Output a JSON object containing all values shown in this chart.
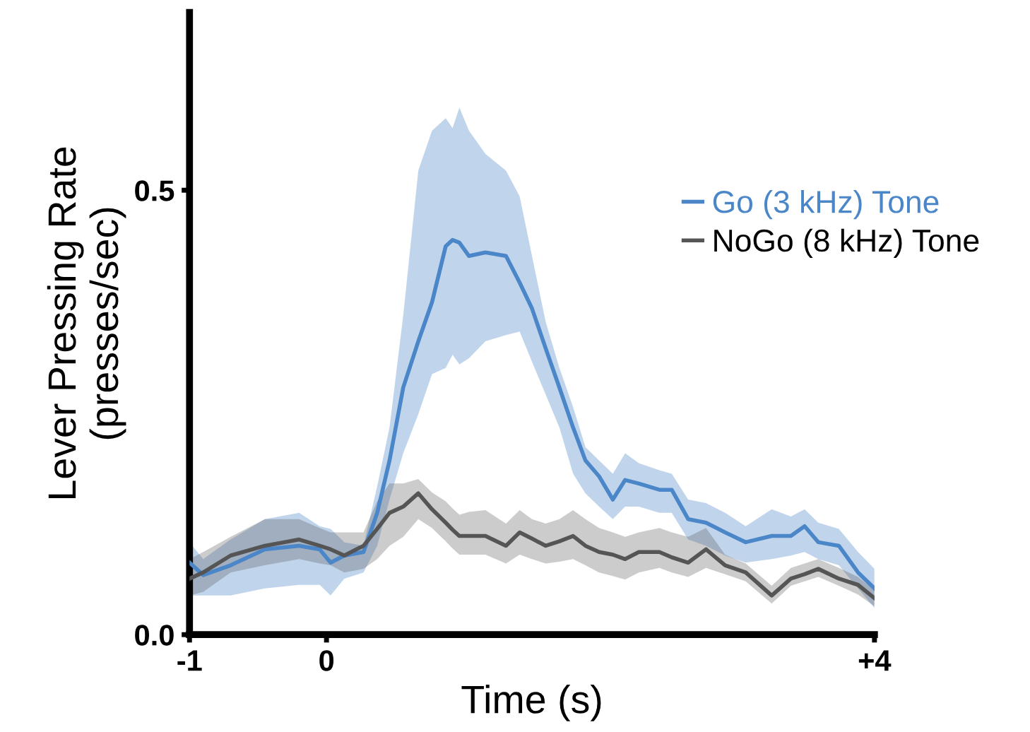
{
  "chart_data": {
    "type": "line",
    "xlabel": "Time (s)",
    "ylabel": "Lever Pressing Rate\n(presses/sec)",
    "x": [
      -1,
      -0.9,
      -0.7,
      -0.45,
      -0.2,
      -0.05,
      0.03,
      0.13,
      0.27,
      0.37,
      0.46,
      0.56,
      0.67,
      0.77,
      0.87,
      0.92,
      0.97,
      1.04,
      1.16,
      1.31,
      1.41,
      1.5,
      1.6,
      1.7,
      1.8,
      1.89,
      1.99,
      2.09,
      2.18,
      2.28,
      2.43,
      2.52,
      2.64,
      2.77,
      2.91,
      3.06,
      3.25,
      3.39,
      3.49,
      3.59,
      3.74,
      3.88,
      4
    ],
    "series": [
      {
        "name": "Go (3 kHz) Tone",
        "color": "#4a86c8",
        "values": [
          0.081,
          0.067,
          0.078,
          0.096,
          0.1,
          0.096,
          0.081,
          0.089,
          0.093,
          0.137,
          0.196,
          0.278,
          0.33,
          0.374,
          0.437,
          0.444,
          0.441,
          0.426,
          0.43,
          0.426,
          0.396,
          0.367,
          0.322,
          0.278,
          0.233,
          0.196,
          0.178,
          0.152,
          0.174,
          0.17,
          0.163,
          0.163,
          0.13,
          0.126,
          0.115,
          0.104,
          0.111,
          0.111,
          0.122,
          0.104,
          0.1,
          0.07,
          0.052
        ],
        "upper": [
          0.104,
          0.085,
          0.107,
          0.13,
          0.137,
          0.122,
          0.119,
          0.104,
          0.1,
          0.167,
          0.233,
          0.359,
          0.522,
          0.567,
          0.581,
          0.57,
          0.593,
          0.567,
          0.541,
          0.522,
          0.493,
          0.426,
          0.352,
          0.3,
          0.256,
          0.211,
          0.196,
          0.181,
          0.204,
          0.193,
          0.185,
          0.181,
          0.152,
          0.148,
          0.137,
          0.122,
          0.141,
          0.133,
          0.141,
          0.126,
          0.119,
          0.093,
          0.074
        ],
        "lower": [
          0.044,
          0.044,
          0.044,
          0.052,
          0.056,
          0.056,
          0.044,
          0.063,
          0.07,
          0.1,
          0.152,
          0.204,
          0.248,
          0.293,
          0.3,
          0.315,
          0.304,
          0.311,
          0.33,
          0.337,
          0.341,
          0.307,
          0.27,
          0.233,
          0.181,
          0.159,
          0.144,
          0.13,
          0.144,
          0.144,
          0.137,
          0.137,
          0.107,
          0.1,
          0.089,
          0.081,
          0.085,
          0.089,
          0.093,
          0.085,
          0.078,
          0.052,
          0.03
        ]
      },
      {
        "name": "NoGo (8 kHz) Tone",
        "color": "#555555",
        "values": [
          0.063,
          0.07,
          0.089,
          0.1,
          0.107,
          0.1,
          0.096,
          0.089,
          0.1,
          0.119,
          0.137,
          0.144,
          0.159,
          0.141,
          0.126,
          0.118,
          0.111,
          0.111,
          0.111,
          0.1,
          0.115,
          0.108,
          0.1,
          0.105,
          0.111,
          0.1,
          0.093,
          0.09,
          0.085,
          0.093,
          0.093,
          0.087,
          0.081,
          0.096,
          0.078,
          0.07,
          0.044,
          0.063,
          0.068,
          0.074,
          0.063,
          0.056,
          0.041
        ],
        "upper": [
          0.085,
          0.093,
          0.11,
          0.13,
          0.13,
          0.12,
          0.115,
          0.115,
          0.115,
          0.15,
          0.17,
          0.17,
          0.175,
          0.16,
          0.15,
          0.142,
          0.135,
          0.138,
          0.14,
          0.125,
          0.14,
          0.13,
          0.125,
          0.13,
          0.14,
          0.13,
          0.12,
          0.115,
          0.11,
          0.115,
          0.12,
          0.115,
          0.11,
          0.12,
          0.09,
          0.08,
          0.055,
          0.075,
          0.08,
          0.085,
          0.075,
          0.065,
          0.05
        ],
        "lower": [
          0.044,
          0.048,
          0.07,
          0.078,
          0.085,
          0.08,
          0.078,
          0.07,
          0.074,
          0.085,
          0.1,
          0.11,
          0.13,
          0.12,
          0.105,
          0.097,
          0.09,
          0.09,
          0.09,
          0.08,
          0.09,
          0.085,
          0.08,
          0.082,
          0.085,
          0.078,
          0.07,
          0.066,
          0.062,
          0.07,
          0.075,
          0.07,
          0.065,
          0.075,
          0.068,
          0.06,
          0.035,
          0.055,
          0.06,
          0.065,
          0.055,
          0.045,
          0.032
        ]
      }
    ],
    "xlim": [
      -1,
      4
    ],
    "xticks": [
      -1,
      0,
      {
        "value": 4,
        "label": "+4"
      }
    ],
    "ylim": [
      0,
      0.7
    ],
    "yticks": [
      {
        "value": 0,
        "label": "0.0"
      },
      0.5
    ],
    "grid": false,
    "legend": "right",
    "marker": "none",
    "line_style": "solid"
  }
}
